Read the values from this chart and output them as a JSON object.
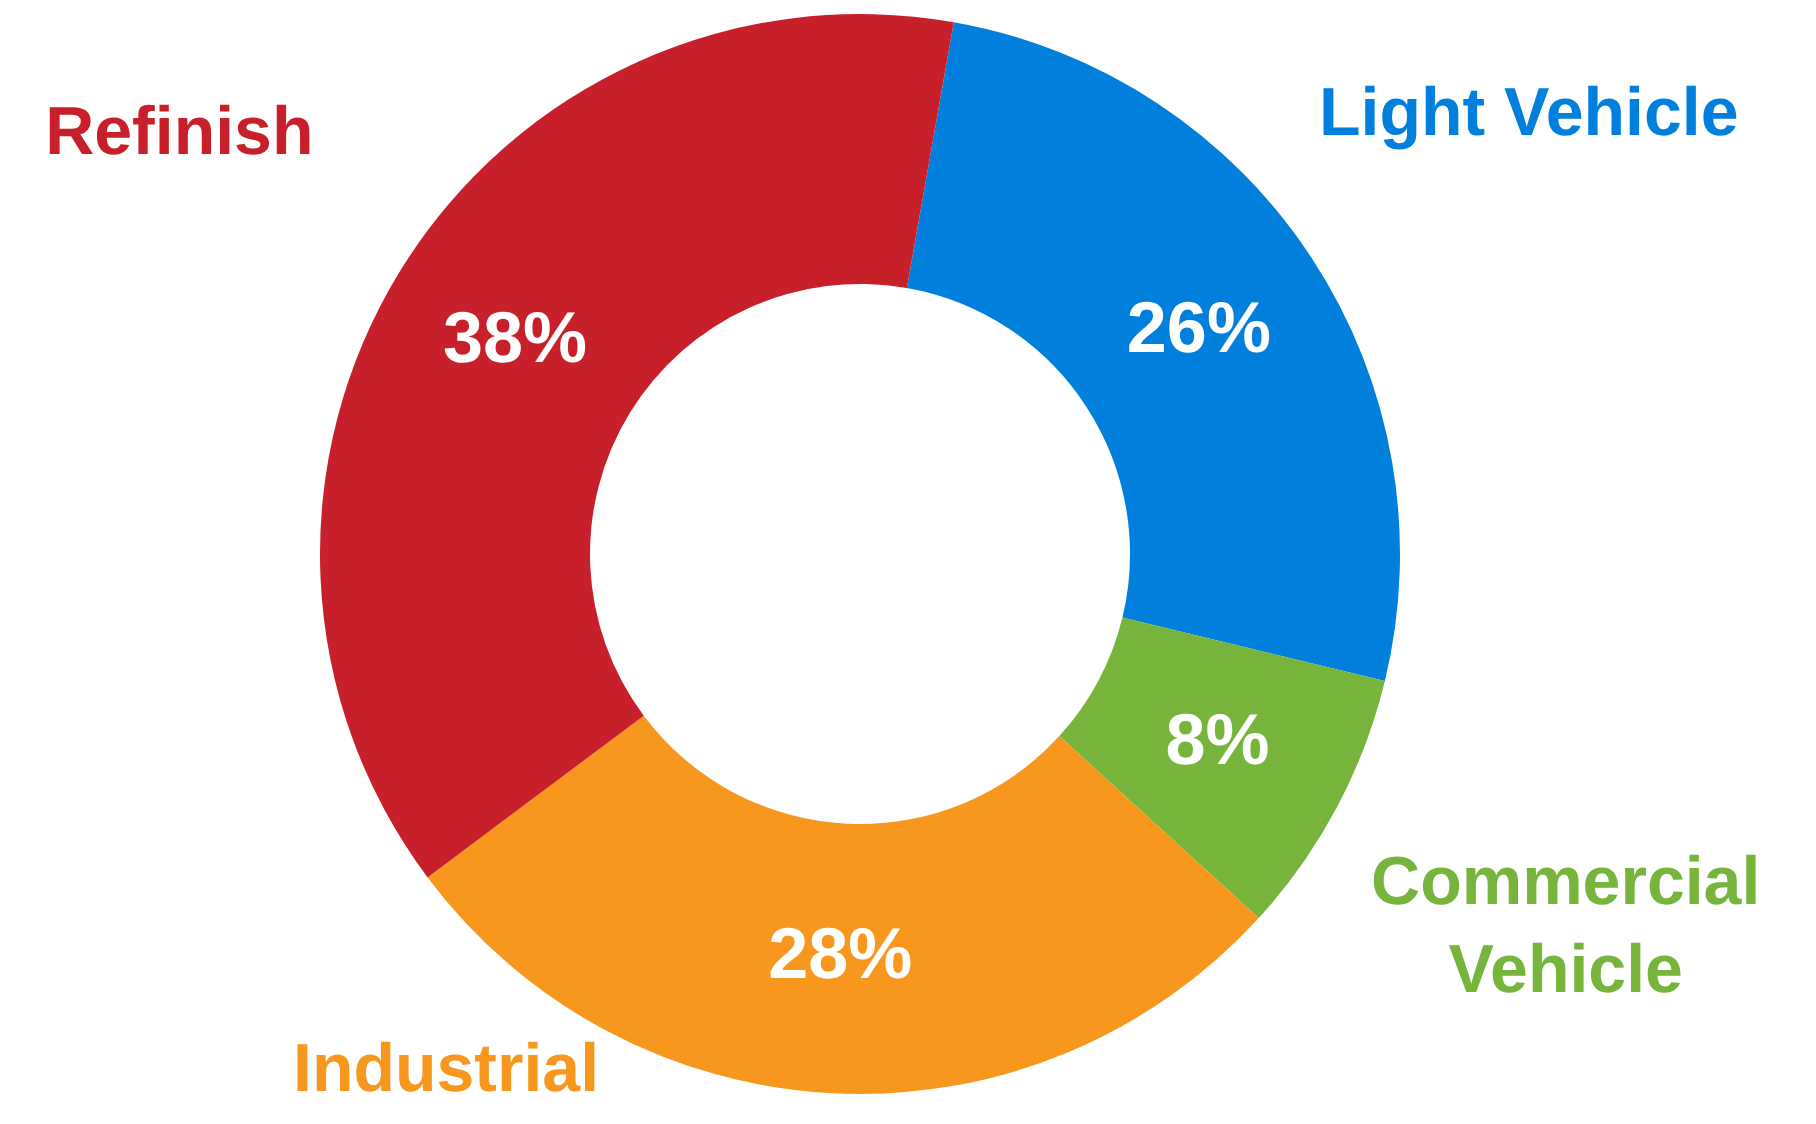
{
  "chart_data": {
    "type": "donut",
    "categories": [
      "Light Vehicle",
      "Commercial Vehicle",
      "Industrial",
      "Refinish"
    ],
    "values": [
      26,
      8,
      28,
      38
    ],
    "colors": [
      "#0080dc",
      "#76b43c",
      "#f7971e",
      "#c8202a"
    ],
    "value_labels": [
      "26%",
      "8%",
      "28%",
      "38%"
    ],
    "legend": false
  }
}
